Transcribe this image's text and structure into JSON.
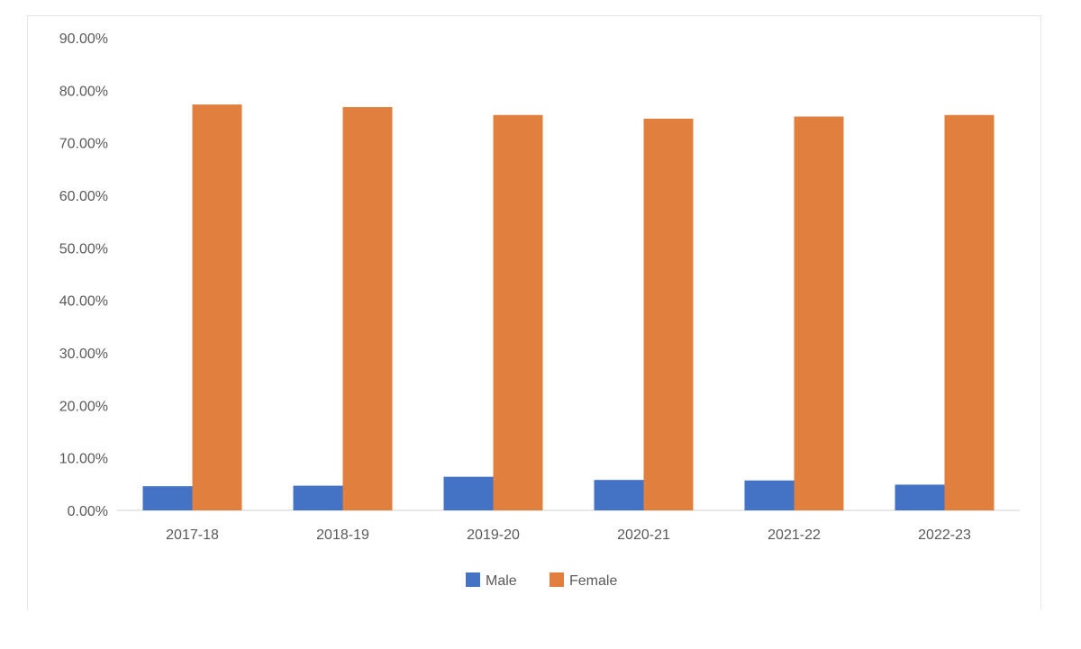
{
  "chart_data": {
    "type": "bar",
    "categories": [
      "2017-18",
      "2018-19",
      "2019-20",
      "2020-21",
      "2021-22",
      "2022-23"
    ],
    "series": [
      {
        "name": "Male",
        "color": "#4472C4",
        "values": [
          4.6,
          4.7,
          6.4,
          5.8,
          5.7,
          4.9
        ]
      },
      {
        "name": "Female",
        "color": "#E07F3E",
        "values": [
          77.3,
          76.8,
          75.3,
          74.6,
          75.0,
          75.3
        ]
      }
    ],
    "y_ticks": [
      "0.00%",
      "10.00%",
      "20.00%",
      "30.00%",
      "40.00%",
      "50.00%",
      "60.00%",
      "70.00%",
      "80.00%",
      "90.00%"
    ],
    "ylim": [
      0,
      90
    ],
    "grid": false,
    "legend_position": "bottom",
    "title": "",
    "xlabel": "",
    "ylabel": ""
  }
}
